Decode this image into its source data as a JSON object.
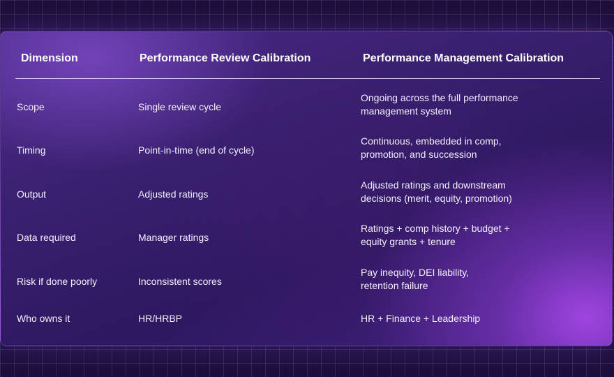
{
  "table": {
    "headers": [
      "Dimension",
      "Performance Review Calibration",
      "Performance Management Calibration"
    ],
    "rows": [
      {
        "dimension": "Scope",
        "review": "Single review cycle",
        "management": [
          "Ongoing across the full performance",
          "management system"
        ]
      },
      {
        "dimension": "Timing",
        "review": "Point-in-time (end of cycle)",
        "management": [
          "Continuous, embedded in comp,",
          "promotion, and succession"
        ]
      },
      {
        "dimension": "Output",
        "review": "Adjusted ratings",
        "management": [
          "Adjusted ratings and downstream",
          "decisions (merit, equity, promotion)"
        ]
      },
      {
        "dimension": "Data required",
        "review": "Manager ratings",
        "management": [
          "Ratings + comp history + budget +",
          "equity grants + tenure"
        ]
      },
      {
        "dimension": "Risk if done poorly",
        "review": "Inconsistent scores",
        "management": [
          "Pay inequity, DEI liability,",
          "retention failure"
        ]
      },
      {
        "dimension": "Who owns it",
        "review": "HR/HRBP",
        "management": [
          "HR + Finance + Leadership"
        ]
      }
    ]
  },
  "colors": {
    "background": "#1d0f3b",
    "card": "#3a2070",
    "accent_glow": "#a546e6",
    "text": "#ffffff"
  }
}
